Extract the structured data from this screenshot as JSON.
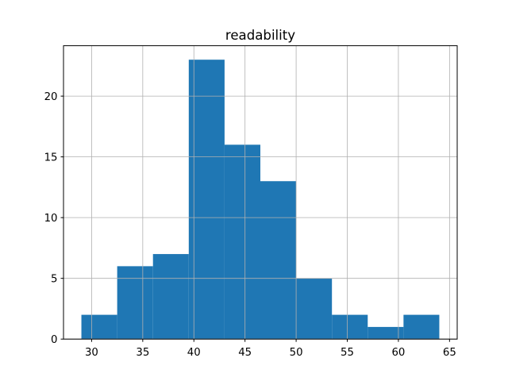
{
  "chart_data": {
    "type": "histogram",
    "title": "readability",
    "bin_edges": [
      29,
      32.5,
      36,
      39.5,
      43,
      46.5,
      50,
      53.5,
      57,
      60.5,
      64
    ],
    "counts": [
      2,
      6,
      7,
      23,
      16,
      13,
      5,
      2,
      1,
      2
    ],
    "total_observations": 77,
    "xticks": [
      30,
      35,
      40,
      45,
      50,
      55,
      60,
      65
    ],
    "yticks": [
      0,
      5,
      10,
      15,
      20
    ],
    "xlim": [
      27.25,
      65.75
    ],
    "ylim": [
      0,
      24.15
    ],
    "xlabel": "",
    "ylabel": "",
    "grid": true,
    "grid_over_bars": true,
    "legend": null,
    "colors": {
      "bar": "#1f77b4",
      "grid": "#b0b0b0",
      "axes": "#000000",
      "background": "#ffffff"
    }
  }
}
